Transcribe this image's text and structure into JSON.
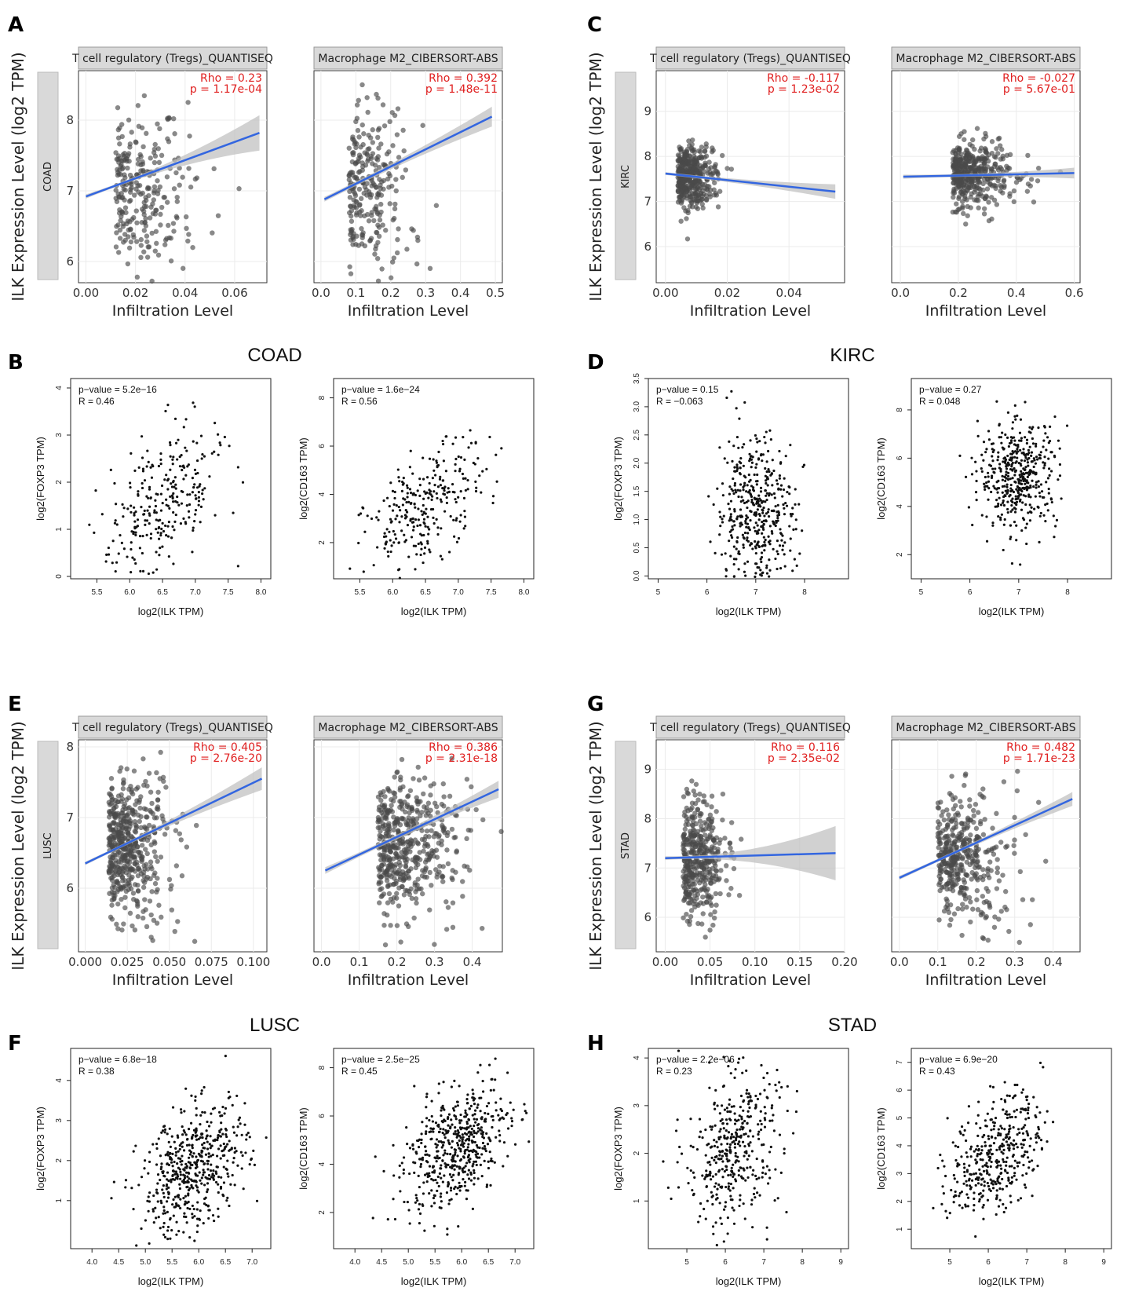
{
  "figure": {
    "timer_ylabel": "ILK Expression Level (log2 TPM)",
    "timer_xlabel": "Infiltration Level",
    "gepia_xlabel": "log2(ILK TPM)",
    "gepia_ylabel_foxp3": "log2(FOXP3 TPM)",
    "gepia_ylabel_cd163": "log2(CD163 TPM)",
    "strip_tregs": "T cell regulatory (Tregs)_QUANTISEQ",
    "strip_m2": "Macrophage M2_CIBERSORT-ABS"
  },
  "colors": {
    "point": "#4a4a4a",
    "line": "#3366e0",
    "band": "#bdbdbd",
    "stat": "#e02020",
    "strip": "#d9d9d9",
    "grid": "#ebebeb"
  },
  "chart_data": [
    {
      "id": "A",
      "type": "scatter",
      "cancer": "COAD",
      "panels": [
        {
          "strip": "T cell regulatory (Tregs)_QUANTISEQ",
          "rho": "Rho = 0.23",
          "p": "p = 1.17e-04",
          "xlim": [
            -0.003,
            0.073
          ],
          "ylim": [
            5.7,
            8.7
          ],
          "xticks": [
            "0.00",
            "0.02",
            "0.04",
            "0.06"
          ],
          "xtickv": [
            0,
            0.02,
            0.04,
            0.06
          ],
          "yticks": [
            "6",
            "7",
            "8"
          ],
          "ytickv": [
            6,
            7,
            8
          ],
          "fit": [
            [
              0,
              6.92
            ],
            [
              0.07,
              7.82
            ]
          ],
          "ci": [
            0.02,
            0.25
          ],
          "cx": 0.012,
          "sx": 0.013,
          "cy": 7.0,
          "sy": 0.55,
          "n": 260,
          "corr": 0.3
        },
        {
          "strip": "Macrophage M2_CIBERSORT-ABS",
          "rho": "Rho = 0.392",
          "p": "p = 1.48e-11",
          "xlim": [
            -0.02,
            0.52
          ],
          "ylim": [
            5.7,
            8.7
          ],
          "xticks": [
            "0.0",
            "0.1",
            "0.2",
            "0.3",
            "0.4",
            "0.5"
          ],
          "xtickv": [
            0,
            0.1,
            0.2,
            0.3,
            0.4,
            0.5
          ],
          "yticks": [],
          "ytickv": [
            6,
            7,
            8
          ],
          "fit": [
            [
              0.01,
              6.88
            ],
            [
              0.49,
              8.05
            ]
          ],
          "ci": [
            0.03,
            0.14
          ],
          "cx": 0.08,
          "sx": 0.08,
          "cy": 7.0,
          "sy": 0.55,
          "n": 260,
          "corr": 0.45
        }
      ]
    },
    {
      "id": "C",
      "type": "scatter",
      "cancer": "KIRC",
      "panels": [
        {
          "strip": "T cell regulatory (Tregs)_QUANTISEQ",
          "rho": "Rho = -0.117",
          "p": "p = 1.23e-02",
          "xlim": [
            -0.003,
            0.058
          ],
          "ylim": [
            5.2,
            9.9
          ],
          "xticks": [
            "0.00",
            "0.02",
            "0.04"
          ],
          "xtickv": [
            0,
            0.02,
            0.04
          ],
          "yticks": [
            "6",
            "7",
            "8",
            "9"
          ],
          "ytickv": [
            6,
            7,
            8,
            9
          ],
          "fit": [
            [
              0,
              7.62
            ],
            [
              0.055,
              7.22
            ]
          ],
          "ci": [
            0.03,
            0.16
          ],
          "cx": 0.004,
          "sx": 0.005,
          "cy": 7.55,
          "sy": 0.35,
          "n": 420,
          "corr": -0.1
        },
        {
          "strip": "Macrophage M2_CIBERSORT-ABS",
          "rho": "Rho = -0.027",
          "p": "p = 5.67e-01",
          "xlim": [
            -0.03,
            0.62
          ],
          "ylim": [
            5.2,
            9.9
          ],
          "xticks": [
            "0.0",
            "0.2",
            "0.4",
            "0.6"
          ],
          "xtickv": [
            0,
            0.2,
            0.4,
            0.6
          ],
          "yticks": [],
          "ytickv": [
            6,
            7,
            8,
            9
          ],
          "fit": [
            [
              0.01,
              7.55
            ],
            [
              0.6,
              7.63
            ]
          ],
          "ci": [
            0.03,
            0.12
          ],
          "cx": 0.18,
          "sx": 0.09,
          "cy": 7.6,
          "sy": 0.35,
          "n": 420,
          "corr": 0.0
        }
      ]
    },
    {
      "id": "E",
      "type": "scatter",
      "cancer": "LUSC",
      "panels": [
        {
          "strip": "T cell regulatory (Tregs)_QUANTISEQ",
          "rho": "Rho = 0.405",
          "p": "p = 2.76e-20",
          "xlim": [
            -0.004,
            0.108
          ],
          "ylim": [
            5.1,
            8.1
          ],
          "xticks": [
            "0.000",
            "0.025",
            "0.050",
            "0.075",
            "0.100"
          ],
          "xtickv": [
            0,
            0.025,
            0.05,
            0.075,
            0.1
          ],
          "yticks": [
            "6",
            "7",
            "8"
          ],
          "ytickv": [
            6,
            7,
            8
          ],
          "fit": [
            [
              0,
              6.35
            ],
            [
              0.105,
              7.55
            ]
          ],
          "ci": [
            0.02,
            0.16
          ],
          "cx": 0.014,
          "sx": 0.014,
          "cy": 6.6,
          "sy": 0.5,
          "n": 500,
          "corr": 0.4
        },
        {
          "strip": "Macrophage M2_CIBERSORT-ABS",
          "rho": "Rho = 0.386",
          "p": "p = 2.31e-18",
          "xlim": [
            -0.02,
            0.48
          ],
          "ylim": [
            5.1,
            8.1
          ],
          "xticks": [
            "0.0",
            "0.1",
            "0.2",
            "0.3",
            "0.4"
          ],
          "xtickv": [
            0,
            0.1,
            0.2,
            0.3,
            0.4
          ],
          "yticks": [],
          "ytickv": [
            6,
            7,
            8
          ],
          "fit": [
            [
              0.01,
              6.25
            ],
            [
              0.47,
              7.4
            ]
          ],
          "ci": [
            0.03,
            0.12
          ],
          "cx": 0.15,
          "sx": 0.09,
          "cy": 6.6,
          "sy": 0.5,
          "n": 500,
          "corr": 0.4
        }
      ]
    },
    {
      "id": "G",
      "type": "scatter",
      "cancer": "STAD",
      "panels": [
        {
          "strip": "T cell regulatory (Tregs)_QUANTISEQ",
          "rho": "Rho = 0.116",
          "p": "p = 2.35e-02",
          "xlim": [
            -0.01,
            0.2
          ],
          "ylim": [
            5.3,
            9.6
          ],
          "xticks": [
            "0.00",
            "0.05",
            "0.10",
            "0.15",
            "0.20"
          ],
          "xtickv": [
            0,
            0.05,
            0.1,
            0.15,
            0.2
          ],
          "yticks": [
            "6",
            "7",
            "8",
            "9"
          ],
          "ytickv": [
            6,
            7,
            8,
            9
          ],
          "fit": [
            [
              0,
              7.2
            ],
            [
              0.19,
              7.3
            ]
          ],
          "ci": [
            0.03,
            0.55
          ],
          "cx": 0.02,
          "sx": 0.02,
          "cy": 7.2,
          "sy": 0.65,
          "n": 400,
          "corr": 0.1
        },
        {
          "strip": "Macrophage M2_CIBERSORT-ABS",
          "rho": "Rho = 0.482",
          "p": "p = 1.71e-23",
          "xlim": [
            -0.02,
            0.47
          ],
          "ylim": [
            5.3,
            9.6
          ],
          "xticks": [
            "0.0",
            "0.1",
            "0.2",
            "0.3",
            "0.4"
          ],
          "xtickv": [
            0,
            0.1,
            0.2,
            0.3,
            0.4
          ],
          "yticks": [],
          "ytickv": [
            6,
            7,
            8,
            9
          ],
          "fit": [
            [
              0.0,
              6.8
            ],
            [
              0.45,
              8.4
            ]
          ],
          "ci": [
            0.03,
            0.14
          ],
          "cx": 0.1,
          "sx": 0.08,
          "cy": 7.2,
          "sy": 0.6,
          "n": 400,
          "corr": 0.45
        }
      ]
    },
    {
      "id": "B",
      "type": "scatter",
      "cancer": "COAD",
      "title": "COAD",
      "panels": [
        {
          "ylabel": "log2(FOXP3 TPM)",
          "pval": "p−value = 5.2e−16",
          "r": "R = 0.46",
          "xlim": [
            5.1,
            8.15
          ],
          "ylim": [
            -0.05,
            4.2
          ],
          "xticks": [
            "5.5",
            "6.0",
            "6.5",
            "7.0",
            "7.5",
            "8.0"
          ],
          "xtickv": [
            5.5,
            6,
            6.5,
            7,
            7.5,
            8
          ],
          "yticks": [
            "0",
            "1",
            "2",
            "3",
            "4"
          ],
          "ytickv": [
            0,
            1,
            2,
            3,
            4
          ],
          "cx": 6.5,
          "sx": 0.45,
          "cy": 1.5,
          "sy": 0.85,
          "n": 280,
          "corr": 0.46
        },
        {
          "ylabel": "log2(CD163 TPM)",
          "pval": "p−value = 1.6e−24",
          "r": "R = 0.56",
          "xlim": [
            5.1,
            8.15
          ],
          "ylim": [
            0.5,
            8.8
          ],
          "xticks": [
            "5.5",
            "6.0",
            "6.5",
            "7.0",
            "7.5",
            "8.0"
          ],
          "xtickv": [
            5.5,
            6,
            6.5,
            7,
            7.5,
            8
          ],
          "yticks": [
            "2",
            "4",
            "6",
            "8"
          ],
          "ytickv": [
            2,
            4,
            6,
            8
          ],
          "cx": 6.5,
          "sx": 0.45,
          "cy": 3.5,
          "sy": 1.3,
          "n": 280,
          "corr": 0.56
        }
      ]
    },
    {
      "id": "D",
      "type": "scatter",
      "cancer": "KIRC",
      "title": "KIRC",
      "panels": [
        {
          "ylabel": "log2(FOXP3 TPM)",
          "pval": "p−value = 0.15",
          "r": "R = −0.063",
          "xlim": [
            4.8,
            8.9
          ],
          "ylim": [
            -0.05,
            3.5
          ],
          "xticks": [
            "5",
            "6",
            "7",
            "8"
          ],
          "xtickv": [
            5,
            6,
            7,
            8
          ],
          "yticks": [
            "0.0",
            "0.5",
            "1.0",
            "1.5",
            "2.0",
            "2.5",
            "3.0",
            "3.5"
          ],
          "ytickv": [
            0,
            0.5,
            1,
            1.5,
            2,
            2.5,
            3,
            3.5
          ],
          "cx": 7.0,
          "sx": 0.4,
          "cy": 1.1,
          "sy": 0.7,
          "n": 450,
          "corr": -0.06
        },
        {
          "ylabel": "log2(CD163 TPM)",
          "pval": "p−value = 0.27",
          "r": "R = 0.048",
          "xlim": [
            4.8,
            8.9
          ],
          "ylim": [
            1,
            9.3
          ],
          "xticks": [
            "5",
            "6",
            "7",
            "8"
          ],
          "xtickv": [
            5,
            6,
            7,
            8
          ],
          "yticks": [
            "2",
            "4",
            "6",
            "8"
          ],
          "ytickv": [
            2,
            4,
            6,
            8
          ],
          "cx": 7.0,
          "sx": 0.4,
          "cy": 5.3,
          "sy": 1.1,
          "n": 450,
          "corr": 0.05
        }
      ]
    },
    {
      "id": "F",
      "type": "scatter",
      "cancer": "LUSC",
      "title": "LUSC",
      "panels": [
        {
          "ylabel": "log2(FOXP3 TPM)",
          "pval": "p−value = 6.8e−18",
          "r": "R = 0.38",
          "xlim": [
            3.6,
            7.35
          ],
          "ylim": [
            -0.2,
            4.8
          ],
          "xticks": [
            "4.0",
            "4.5",
            "5.0",
            "5.5",
            "6.0",
            "6.5",
            "7.0"
          ],
          "xtickv": [
            4,
            4.5,
            5,
            5.5,
            6,
            6.5,
            7
          ],
          "yticks": [
            "1",
            "2",
            "3",
            "4"
          ],
          "ytickv": [
            1,
            2,
            3,
            4
          ],
          "cx": 5.9,
          "sx": 0.5,
          "cy": 1.8,
          "sy": 0.8,
          "n": 520,
          "corr": 0.38
        },
        {
          "ylabel": "log2(CD163 TPM)",
          "pval": "p−value = 2.5e−25",
          "r": "R = 0.45",
          "xlim": [
            3.6,
            7.35
          ],
          "ylim": [
            0.5,
            8.8
          ],
          "xticks": [
            "4.0",
            "4.5",
            "5.0",
            "5.5",
            "6.0",
            "6.5",
            "7.0"
          ],
          "xtickv": [
            4,
            4.5,
            5,
            5.5,
            6,
            6.5,
            7
          ],
          "yticks": [
            "2",
            "4",
            "6",
            "8"
          ],
          "ytickv": [
            2,
            4,
            6,
            8
          ],
          "cx": 5.9,
          "sx": 0.5,
          "cy": 4.7,
          "sy": 1.3,
          "n": 520,
          "corr": 0.45
        }
      ]
    },
    {
      "id": "H",
      "type": "scatter",
      "cancer": "STAD",
      "title": "STAD",
      "panels": [
        {
          "ylabel": "log2(FOXP3 TPM)",
          "pval": "p−value = 2.2e−06",
          "r": "R = 0.23",
          "xlim": [
            4.0,
            9.2
          ],
          "ylim": [
            0,
            4.2
          ],
          "xticks": [
            "5",
            "6",
            "7",
            "8",
            "9"
          ],
          "xtickv": [
            5,
            6,
            7,
            8,
            9
          ],
          "yticks": [
            "1",
            "2",
            "3",
            "4"
          ],
          "ytickv": [
            1,
            2,
            3,
            4
          ],
          "cx": 6.2,
          "sx": 0.6,
          "cy": 2.1,
          "sy": 0.8,
          "n": 400,
          "corr": 0.23
        },
        {
          "ylabel": "log2(CD163 TPM)",
          "pval": "p−value = 6.9e−20",
          "r": "R = 0.43",
          "xlim": [
            4.0,
            9.2
          ],
          "ylim": [
            0.3,
            7.5
          ],
          "xticks": [
            "5",
            "6",
            "7",
            "8",
            "9"
          ],
          "xtickv": [
            5,
            6,
            7,
            8,
            9
          ],
          "yticks": [
            "1",
            "2",
            "3",
            "4",
            "5",
            "6",
            "7"
          ],
          "ytickv": [
            1,
            2,
            3,
            4,
            5,
            6,
            7
          ],
          "cx": 6.2,
          "sx": 0.6,
          "cy": 3.7,
          "sy": 1.1,
          "n": 400,
          "corr": 0.43
        }
      ]
    }
  ]
}
